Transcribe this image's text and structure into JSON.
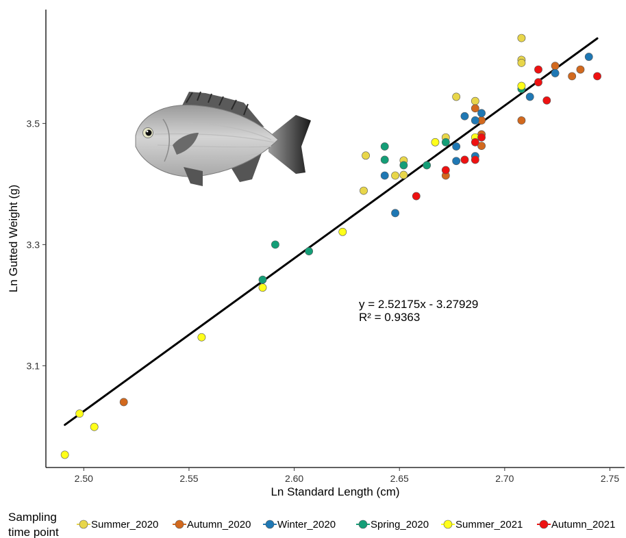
{
  "chart_data": {
    "type": "scatter",
    "xlabel": "Ln Standard Length (cm)",
    "ylabel": "Ln Gutted Weight (g)",
    "xlim": [
      2.482,
      2.757
    ],
    "ylim": [
      2.932,
      3.688
    ],
    "x_ticks": [
      "2.50",
      "2.55",
      "2.60",
      "2.65",
      "2.70",
      "2.75"
    ],
    "y_ticks": [
      "3.1",
      "3.3",
      "3.5"
    ],
    "grid": false,
    "legend_title_line1": "Sampling",
    "legend_title_line2": "time point",
    "legend_position": "bottom",
    "annotation_line1": "y = 2.52175x - 3.27929",
    "annotation_line2": "R² = 0.9363",
    "trendline": {
      "slope": 2.52175,
      "intercept": -3.27929,
      "x_start": 2.491,
      "x_end": 2.744,
      "color": "#000000"
    },
    "series": [
      {
        "name": "Summer_2020",
        "color": "#E8D64A",
        "points": [
          [
            2.633,
            3.389
          ],
          [
            2.634,
            3.447
          ],
          [
            2.648,
            3.414
          ],
          [
            2.652,
            3.439
          ],
          [
            2.652,
            3.415
          ],
          [
            2.672,
            3.477
          ],
          [
            2.677,
            3.544
          ],
          [
            2.686,
            3.537
          ],
          [
            2.708,
            3.641
          ],
          [
            2.708,
            3.605
          ],
          [
            2.708,
            3.6
          ]
        ]
      },
      {
        "name": "Autumn_2020",
        "color": "#D2691E",
        "points": [
          [
            2.519,
            3.04
          ],
          [
            2.672,
            3.414
          ],
          [
            2.686,
            3.525
          ],
          [
            2.689,
            3.505
          ],
          [
            2.689,
            3.482
          ],
          [
            2.689,
            3.463
          ],
          [
            2.708,
            3.505
          ],
          [
            2.724,
            3.595
          ],
          [
            2.732,
            3.578
          ],
          [
            2.736,
            3.589
          ]
        ]
      },
      {
        "name": "Winter_2020",
        "color": "#1F78B4",
        "points": [
          [
            2.643,
            3.414
          ],
          [
            2.648,
            3.352
          ],
          [
            2.677,
            3.438
          ],
          [
            2.677,
            3.462
          ],
          [
            2.681,
            3.512
          ],
          [
            2.686,
            3.505
          ],
          [
            2.686,
            3.446
          ],
          [
            2.689,
            3.517
          ],
          [
            2.712,
            3.544
          ],
          [
            2.724,
            3.583
          ],
          [
            2.74,
            3.61
          ]
        ]
      },
      {
        "name": "Spring_2020",
        "color": "#149E77",
        "points": [
          [
            2.585,
            3.242
          ],
          [
            2.591,
            3.3
          ],
          [
            2.607,
            3.289
          ],
          [
            2.643,
            3.462
          ],
          [
            2.643,
            3.44
          ],
          [
            2.652,
            3.431
          ],
          [
            2.663,
            3.431
          ],
          [
            2.672,
            3.469
          ],
          [
            2.708,
            3.557
          ]
        ]
      },
      {
        "name": "Summer_2021",
        "color": "#FFFF1A",
        "points": [
          [
            2.491,
            2.953
          ],
          [
            2.498,
            3.021
          ],
          [
            2.505,
            2.999
          ],
          [
            2.556,
            3.147
          ],
          [
            2.585,
            3.229
          ],
          [
            2.623,
            3.321
          ],
          [
            2.667,
            3.469
          ],
          [
            2.686,
            3.477
          ],
          [
            2.708,
            3.562
          ]
        ]
      },
      {
        "name": "Autumn_2021",
        "color": "#EE1111",
        "points": [
          [
            2.658,
            3.38
          ],
          [
            2.672,
            3.423
          ],
          [
            2.681,
            3.44
          ],
          [
            2.686,
            3.469
          ],
          [
            2.686,
            3.44
          ],
          [
            2.689,
            3.477
          ],
          [
            2.716,
            3.568
          ],
          [
            2.716,
            3.589
          ],
          [
            2.72,
            3.538
          ],
          [
            2.744,
            3.578
          ]
        ]
      }
    ]
  }
}
